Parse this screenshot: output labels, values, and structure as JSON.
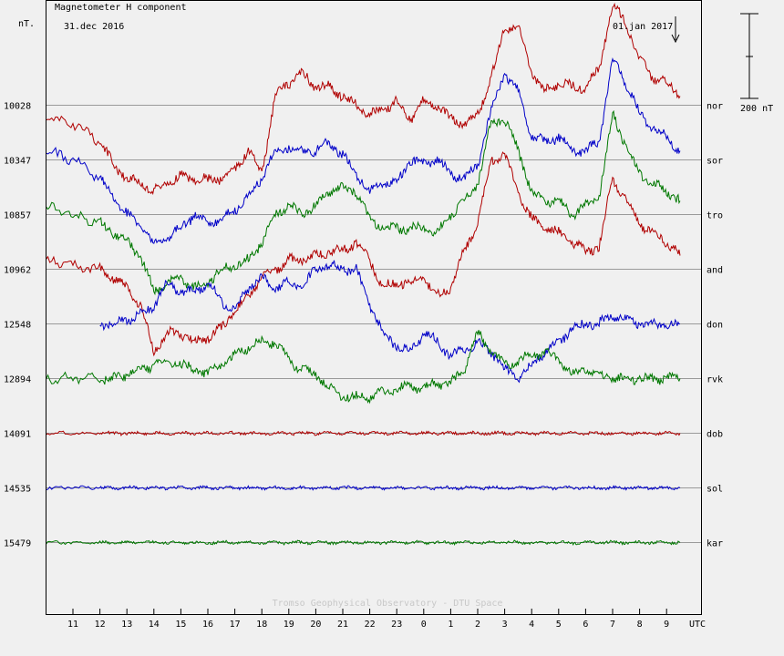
{
  "chart_data": {
    "type": "line",
    "title": "Magnetometer H component",
    "ylabel": "nT.",
    "xlabel": "UTC",
    "date_start_label": "31.dec 2016",
    "date_end_label": "01.jan 2017",
    "scale_bar_label": "200 nT",
    "credit": "Tromso Geophysical Observatory - DTU Space",
    "x_ticks": [
      "11",
      "12",
      "13",
      "14",
      "15",
      "16",
      "17",
      "18",
      "19",
      "20",
      "21",
      "22",
      "23",
      "0",
      "1",
      "2",
      "3",
      "4",
      "5",
      "6",
      "7",
      "8",
      "9"
    ],
    "grid": "horizontal baselines only",
    "stations": [
      {
        "code": "nor",
        "baseline": "10028",
        "color": "#b00000"
      },
      {
        "code": "sor",
        "baseline": "10347",
        "color": "#0000c8"
      },
      {
        "code": "tro",
        "baseline": "10857",
        "color": "#007800"
      },
      {
        "code": "and",
        "baseline": "10962",
        "color": "#b00000"
      },
      {
        "code": "don",
        "baseline": "12548",
        "color": "#0000c8"
      },
      {
        "code": "rvk",
        "baseline": "12894",
        "color": "#007800"
      },
      {
        "code": "dob",
        "baseline": "14091",
        "color": "#b00000"
      },
      {
        "code": "sol",
        "baseline": "14535",
        "color": "#0000c8"
      },
      {
        "code": "kar",
        "baseline": "15479",
        "color": "#007800"
      }
    ],
    "series": [
      {
        "station": "nor",
        "x": [
          10,
          11,
          12,
          12.5,
          13,
          13.5,
          14,
          14.5,
          15,
          15.5,
          16,
          16.5,
          17,
          17.5,
          18,
          18.5,
          19,
          19.5,
          20,
          20.5,
          21,
          21.5,
          22,
          22.5,
          23,
          23.5,
          24,
          24.5,
          25,
          25.5,
          26,
          26.5,
          27,
          27.5,
          28,
          28.5,
          29,
          29.5,
          30,
          30.5,
          31,
          31.5,
          32,
          32.5,
          33,
          33.5
        ],
        "y": [
          -15,
          -20,
          -40,
          -65,
          -80,
          -85,
          -95,
          -85,
          -78,
          -80,
          -82,
          -80,
          -70,
          -50,
          -75,
          10,
          25,
          35,
          20,
          20,
          10,
          0,
          -10,
          -5,
          5,
          -15,
          5,
          0,
          -15,
          -20,
          -10,
          30,
          85,
          85,
          35,
          15,
          25,
          20,
          20,
          40,
          110,
          90,
          50,
          30,
          25,
          10
        ]
      },
      {
        "station": "sor",
        "x": [
          10,
          11,
          12,
          12.5,
          13,
          13.5,
          14,
          14.5,
          15,
          15.5,
          16,
          16.5,
          17,
          17.5,
          18,
          18.5,
          19,
          19.5,
          20,
          20.5,
          21,
          21.5,
          22,
          22.5,
          23,
          23.5,
          24,
          24.5,
          25,
          25.5,
          26,
          26.5,
          27,
          27.5,
          28,
          28.5,
          29,
          29.5,
          30,
          30.5,
          31,
          31.5,
          32,
          32.5,
          33,
          33.5
        ],
        "y": [
          10,
          0,
          -20,
          -40,
          -60,
          -70,
          -95,
          -85,
          -75,
          -60,
          -70,
          -65,
          -55,
          -40,
          -20,
          10,
          15,
          10,
          10,
          20,
          5,
          -15,
          -35,
          -25,
          -25,
          0,
          -5,
          0,
          -15,
          -20,
          -5,
          55,
          95,
          75,
          25,
          20,
          25,
          10,
          10,
          20,
          110,
          85,
          50,
          35,
          25,
          10
        ]
      },
      {
        "station": "tro",
        "x": [
          10,
          11,
          12,
          12.5,
          13,
          13.5,
          14,
          14.5,
          15,
          15.5,
          16,
          16.5,
          17,
          17.5,
          18,
          18.5,
          19,
          19.5,
          20,
          20.5,
          21,
          21.5,
          22,
          22.5,
          23,
          23.5,
          24,
          24.5,
          25,
          25.5,
          26,
          26.5,
          27,
          27.5,
          28,
          28.5,
          29,
          29.5,
          30,
          30.5,
          31,
          31.5,
          32,
          32.5,
          33,
          33.5
        ],
        "y": [
          10,
          0,
          -10,
          -20,
          -30,
          -45,
          -85,
          -75,
          -70,
          -80,
          -75,
          -60,
          -55,
          -50,
          -30,
          0,
          10,
          0,
          10,
          25,
          30,
          25,
          -5,
          -15,
          -15,
          -15,
          -15,
          -20,
          0,
          15,
          35,
          100,
          105,
          70,
          25,
          15,
          15,
          0,
          10,
          20,
          110,
          75,
          45,
          35,
          25,
          15
        ]
      },
      {
        "station": "and",
        "x": [
          10,
          11,
          12,
          12.5,
          13,
          13.5,
          14,
          14.5,
          15,
          15.5,
          16,
          16.5,
          17,
          17.5,
          18,
          18.5,
          19,
          19.5,
          20,
          20.5,
          21,
          21.5,
          22,
          22.5,
          23,
          23.5,
          24,
          24.5,
          25,
          25.5,
          26,
          26.5,
          27,
          27.5,
          28,
          28.5,
          29,
          29.5,
          30,
          30.5,
          31,
          31.5,
          32,
          32.5,
          33,
          33.5
        ],
        "y": [
          10,
          5,
          0,
          -10,
          -20,
          -40,
          -90,
          -70,
          -70,
          -80,
          -75,
          -65,
          -45,
          -30,
          -10,
          0,
          10,
          10,
          15,
          20,
          20,
          30,
          10,
          -20,
          -15,
          -15,
          -10,
          -30,
          -20,
          20,
          50,
          120,
          125,
          85,
          55,
          45,
          40,
          30,
          20,
          25,
          100,
          75,
          50,
          40,
          30,
          15
        ]
      },
      {
        "station": "don",
        "x": [
          12,
          12.5,
          13,
          13.5,
          14,
          14.5,
          15,
          15.5,
          16,
          16.5,
          17,
          17.5,
          18,
          18.5,
          19,
          19.5,
          20,
          20.5,
          21,
          21.5,
          22,
          22.5,
          23,
          23.5,
          24,
          24.5,
          25,
          25.5,
          26,
          26.5,
          27,
          27.5,
          28,
          28.5,
          29,
          29.5,
          30,
          30.5,
          31,
          31.5,
          32,
          32.5,
          33,
          33.5
        ],
        "y": [
          0,
          0,
          5,
          10,
          20,
          45,
          35,
          35,
          45,
          25,
          15,
          40,
          50,
          40,
          45,
          40,
          60,
          65,
          60,
          60,
          20,
          -10,
          -25,
          -30,
          -10,
          -20,
          -35,
          -30,
          -20,
          -30,
          -50,
          -60,
          -45,
          -30,
          -20,
          -5,
          0,
          0,
          10,
          5,
          0,
          0,
          0,
          0
        ]
      },
      {
        "station": "rvk",
        "x": [
          10,
          11,
          12,
          12.5,
          13,
          13.5,
          14,
          14.5,
          15,
          15.5,
          16,
          16.5,
          17,
          17.5,
          18,
          18.5,
          19,
          19.5,
          20,
          20.5,
          21,
          21.5,
          22,
          22.5,
          23,
          23.5,
          24,
          24.5,
          25,
          25.5,
          26,
          26.5,
          27,
          27.5,
          28,
          28.5,
          29,
          29.5,
          30,
          30.5,
          31,
          31.5,
          32,
          32.5,
          33,
          33.5
        ],
        "y": [
          0,
          0,
          0,
          0,
          5,
          10,
          15,
          20,
          15,
          10,
          5,
          15,
          25,
          35,
          40,
          40,
          20,
          10,
          5,
          -10,
          -20,
          -20,
          -20,
          -15,
          -10,
          -10,
          -10,
          -5,
          -5,
          10,
          50,
          30,
          15,
          20,
          25,
          30,
          20,
          5,
          10,
          5,
          0,
          0,
          0,
          0,
          0,
          0
        ]
      },
      {
        "station": "dob",
        "x": [
          10,
          11,
          12,
          12.5,
          13,
          13.5,
          14,
          14.5,
          15,
          15.5,
          16,
          16.5,
          17,
          17.5,
          18,
          18.5,
          19,
          19.5,
          20,
          20.5,
          21,
          21.5,
          22,
          22.5,
          23,
          23.5,
          24,
          24.5,
          25,
          25.5,
          26,
          26.5,
          27,
          27.5,
          28,
          28.5,
          29,
          29.5,
          30,
          30.5,
          31,
          31.5,
          32,
          32.5,
          33,
          33.5
        ],
        "y": [
          0,
          0,
          0,
          0,
          0,
          0,
          0,
          0,
          0,
          0,
          0,
          0,
          0,
          0,
          0,
          0,
          0,
          0,
          0,
          0,
          0,
          0,
          0,
          0,
          0,
          0,
          0,
          0,
          0,
          0,
          0,
          0,
          0,
          0,
          0,
          0,
          0,
          0,
          0,
          0,
          0,
          0,
          0,
          0,
          0,
          0
        ]
      },
      {
        "station": "sol",
        "x": [
          10,
          11,
          12,
          12.5,
          13,
          13.5,
          14,
          14.5,
          15,
          15.5,
          16,
          16.5,
          17,
          17.5,
          18,
          18.5,
          19,
          19.5,
          20,
          20.5,
          21,
          21.5,
          22,
          22.5,
          23,
          23.5,
          24,
          24.5,
          25,
          25.5,
          26,
          26.5,
          27,
          27.5,
          28,
          28.5,
          29,
          29.5,
          30,
          30.5,
          31,
          31.5,
          32,
          32.5,
          33,
          33.5
        ],
        "y": [
          0,
          0,
          0,
          0,
          0,
          0,
          0,
          0,
          0,
          0,
          0,
          0,
          0,
          0,
          0,
          0,
          0,
          0,
          0,
          0,
          0,
          0,
          0,
          0,
          0,
          0,
          0,
          0,
          0,
          0,
          0,
          0,
          0,
          0,
          0,
          0,
          0,
          0,
          0,
          0,
          0,
          0,
          0,
          0,
          0,
          0
        ]
      },
      {
        "station": "kar",
        "x": [
          10,
          11,
          12,
          12.5,
          13,
          13.5,
          14,
          14.5,
          15,
          15.5,
          16,
          16.5,
          17,
          17.5,
          18,
          18.5,
          19,
          19.5,
          20,
          20.5,
          21,
          21.5,
          22,
          22.5,
          23,
          23.5,
          24,
          24.5,
          25,
          25.5,
          26,
          26.5,
          27,
          27.5,
          28,
          28.5,
          29,
          29.5,
          30,
          30.5,
          31,
          31.5,
          32,
          32.5,
          33,
          33.5
        ],
        "y": [
          0,
          0,
          0,
          0,
          0,
          0,
          0,
          0,
          0,
          0,
          0,
          0,
          0,
          0,
          0,
          0,
          0,
          0,
          0,
          0,
          0,
          0,
          0,
          0,
          0,
          0,
          0,
          0,
          0,
          0,
          0,
          0,
          0,
          0,
          0,
          0,
          0,
          0,
          0,
          0,
          0,
          0,
          0,
          0,
          0,
          0
        ]
      }
    ]
  }
}
